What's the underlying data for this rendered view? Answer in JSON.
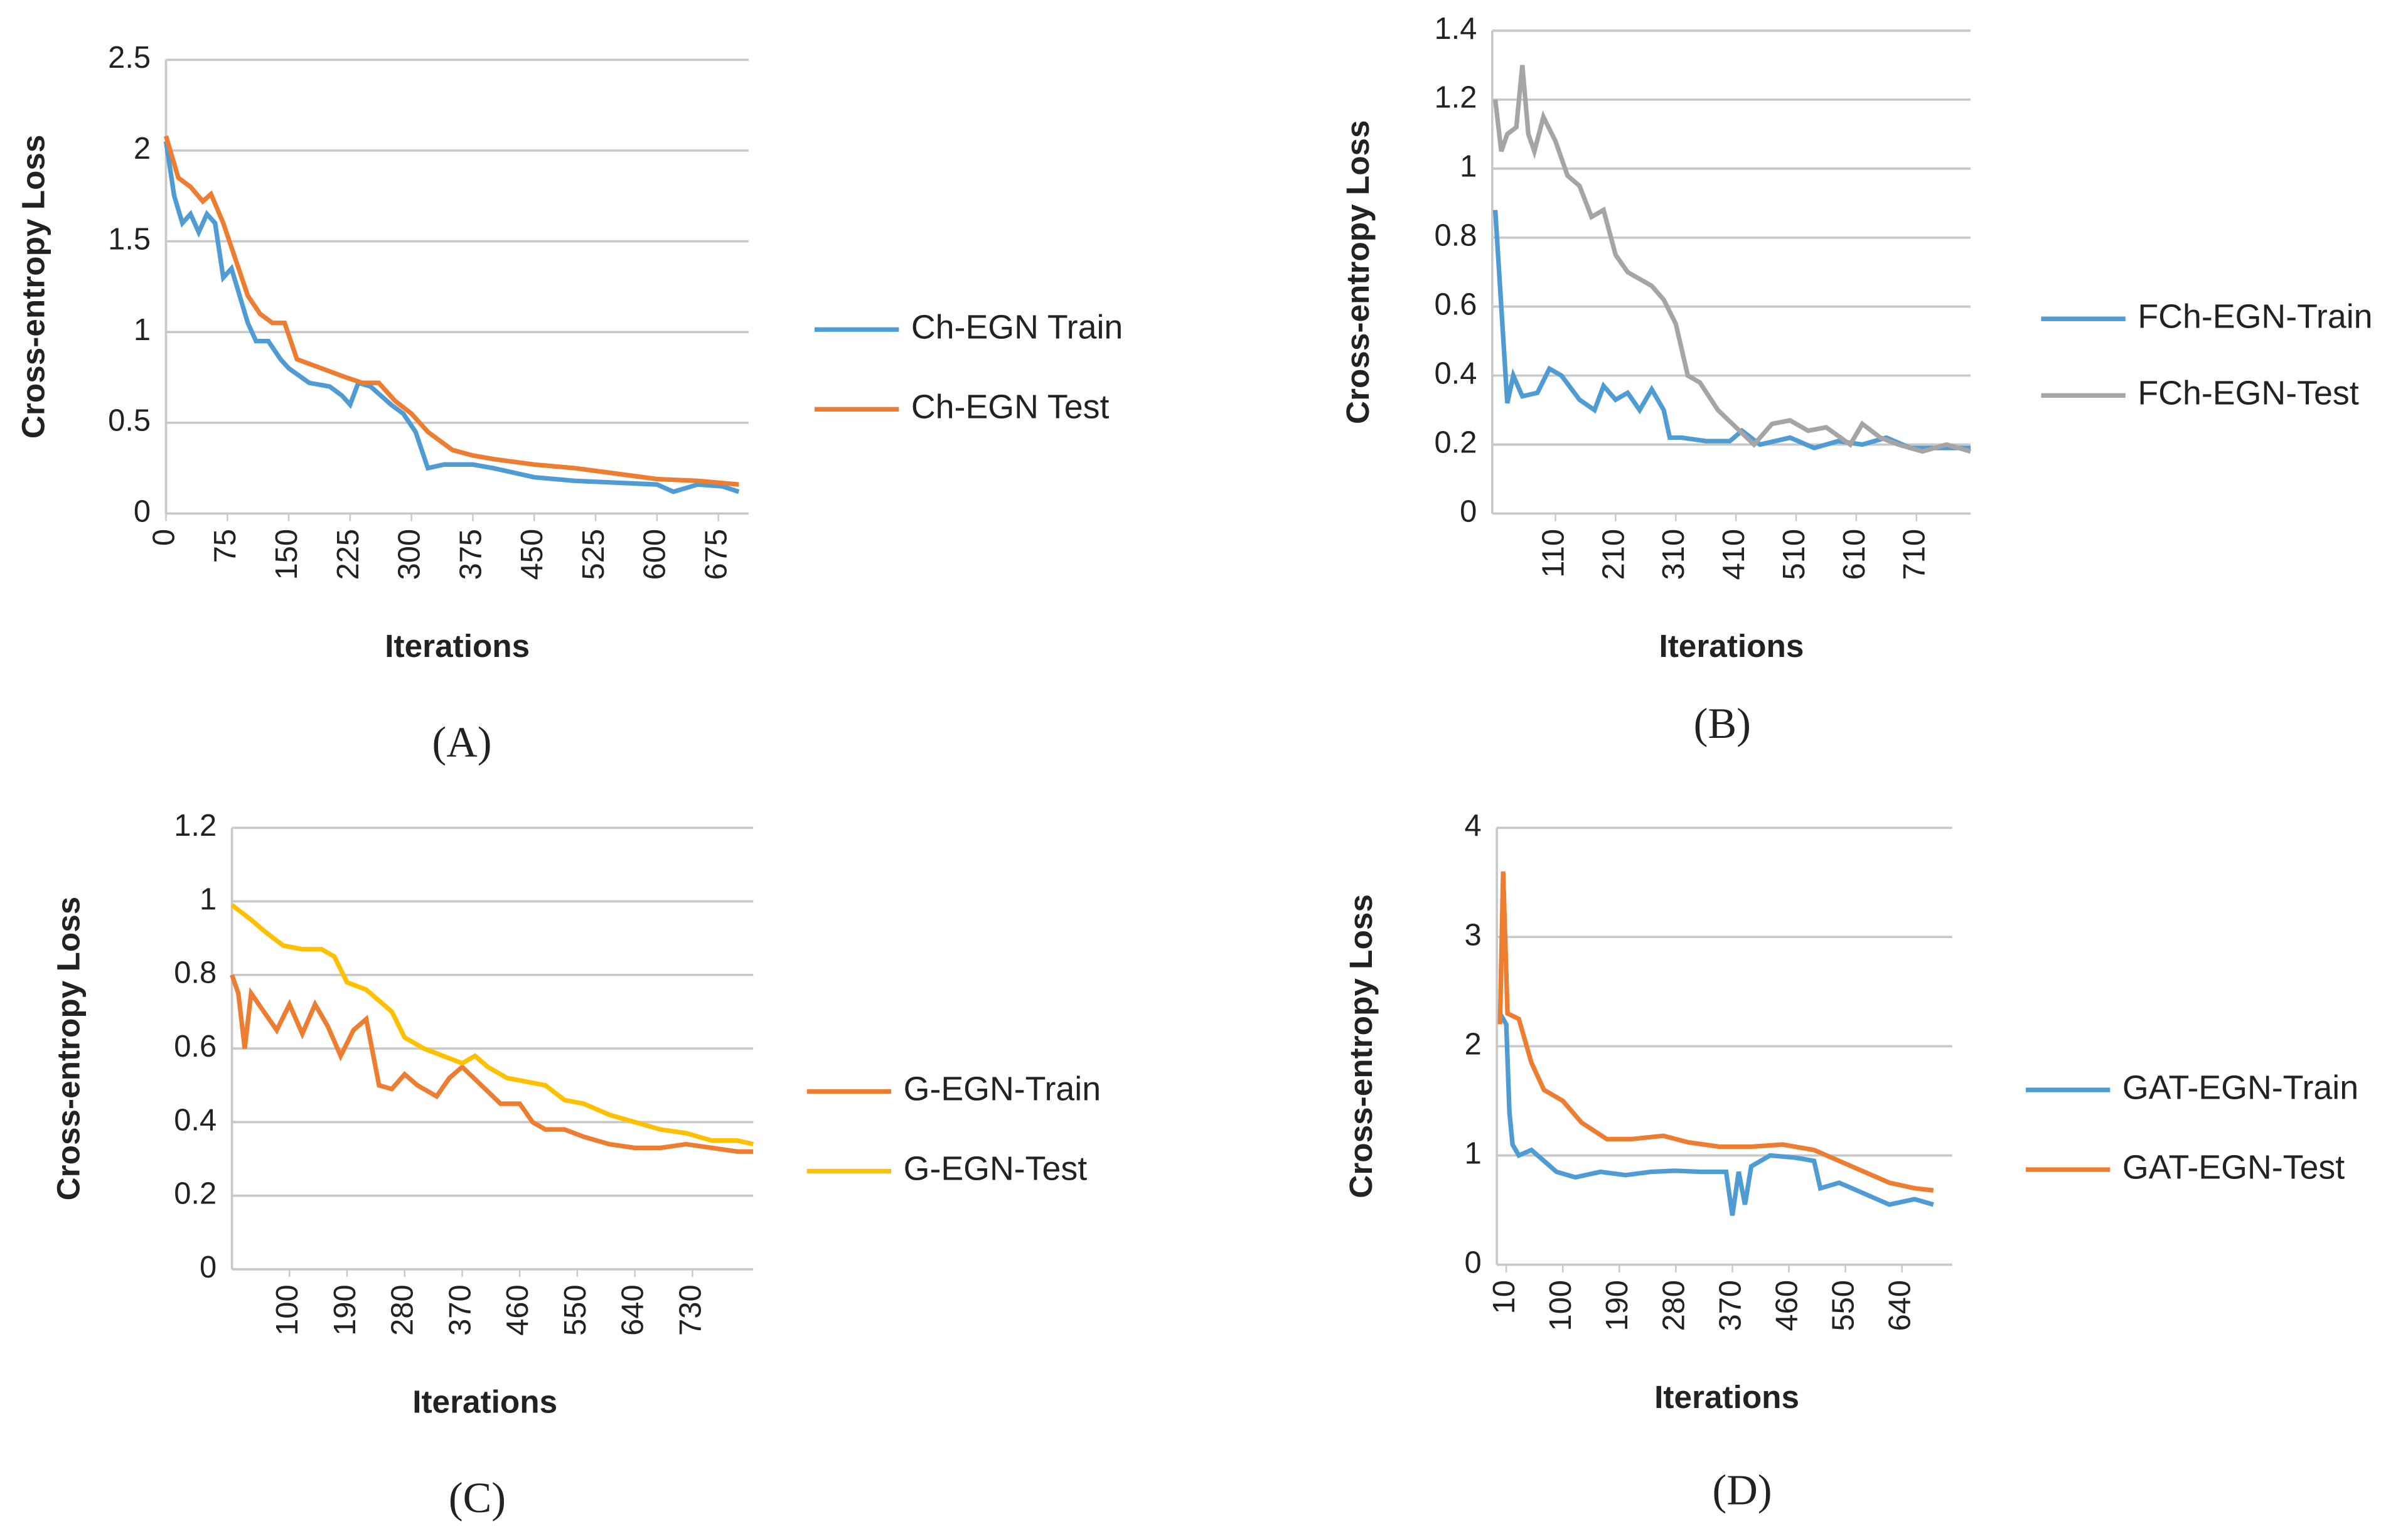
{
  "chart_data": [
    {
      "type": "line",
      "label": "(A)",
      "xlabel": "Iterations",
      "ylabel": "Cross-entropy Loss",
      "xlim": [
        0,
        712
      ],
      "ylim": [
        0,
        2.5
      ],
      "xticks": [
        0,
        75,
        150,
        225,
        300,
        375,
        450,
        525,
        600,
        675
      ],
      "yticks": [
        0,
        0.5,
        1,
        1.5,
        2,
        2.5
      ],
      "grid": true,
      "legend": "right",
      "series": [
        {
          "name": "Ch-EGN Train",
          "color": "#4f9bd3",
          "x": [
            0,
            10,
            20,
            30,
            40,
            50,
            60,
            70,
            80,
            90,
            100,
            110,
            125,
            140,
            150,
            175,
            200,
            215,
            225,
            235,
            250,
            275,
            290,
            305,
            320,
            340,
            375,
            400,
            450,
            500,
            550,
            600,
            620,
            650,
            680,
            700
          ],
          "values": [
            2.05,
            1.75,
            1.6,
            1.65,
            1.55,
            1.65,
            1.6,
            1.3,
            1.35,
            1.2,
            1.05,
            0.95,
            0.95,
            0.85,
            0.8,
            0.72,
            0.7,
            0.65,
            0.6,
            0.72,
            0.7,
            0.6,
            0.55,
            0.45,
            0.25,
            0.27,
            0.27,
            0.25,
            0.2,
            0.18,
            0.17,
            0.16,
            0.12,
            0.16,
            0.15,
            0.12
          ]
        },
        {
          "name": "Ch-EGN Test",
          "color": "#ed7d31",
          "x": [
            0,
            15,
            30,
            45,
            55,
            70,
            85,
            100,
            115,
            130,
            145,
            160,
            190,
            220,
            240,
            260,
            280,
            300,
            320,
            350,
            375,
            400,
            450,
            500,
            550,
            600,
            650,
            700
          ],
          "values": [
            2.08,
            1.85,
            1.8,
            1.72,
            1.76,
            1.6,
            1.4,
            1.2,
            1.1,
            1.05,
            1.05,
            0.85,
            0.8,
            0.75,
            0.72,
            0.72,
            0.62,
            0.55,
            0.45,
            0.35,
            0.32,
            0.3,
            0.27,
            0.25,
            0.22,
            0.19,
            0.18,
            0.16
          ]
        }
      ]
    },
    {
      "type": "line",
      "label": "(B)",
      "xlabel": "Iterations",
      "ylabel": "Cross-entropy Loss",
      "xlim": [
        5,
        800
      ],
      "ylim": [
        0,
        1.4
      ],
      "xticks": [
        110,
        210,
        310,
        410,
        510,
        610,
        710
      ],
      "yticks": [
        0,
        0.2,
        0.4,
        0.6,
        0.8,
        1,
        1.2,
        1.4
      ],
      "grid": true,
      "legend": "right",
      "series": [
        {
          "name": "FCh-EGN-Train",
          "color": "#4f9bd3",
          "x": [
            10,
            20,
            30,
            40,
            55,
            80,
            100,
            120,
            150,
            175,
            190,
            210,
            230,
            250,
            270,
            290,
            300,
            320,
            360,
            400,
            420,
            450,
            500,
            540,
            580,
            620,
            660,
            700,
            750,
            800
          ],
          "values": [
            0.88,
            0.6,
            0.32,
            0.4,
            0.34,
            0.35,
            0.42,
            0.4,
            0.33,
            0.3,
            0.37,
            0.33,
            0.35,
            0.3,
            0.36,
            0.3,
            0.22,
            0.22,
            0.21,
            0.21,
            0.24,
            0.2,
            0.22,
            0.19,
            0.21,
            0.2,
            0.22,
            0.19,
            0.19,
            0.19
          ]
        },
        {
          "name": "FCh-EGN-Test",
          "color": "#a5a5a5",
          "x": [
            10,
            20,
            30,
            45,
            55,
            65,
            75,
            90,
            110,
            130,
            150,
            170,
            190,
            210,
            230,
            250,
            270,
            290,
            310,
            330,
            350,
            380,
            410,
            440,
            470,
            500,
            530,
            560,
            600,
            620,
            650,
            680,
            720,
            760,
            800
          ],
          "values": [
            1.2,
            1.05,
            1.1,
            1.12,
            1.3,
            1.1,
            1.05,
            1.15,
            1.08,
            0.98,
            0.95,
            0.86,
            0.88,
            0.75,
            0.7,
            0.68,
            0.66,
            0.62,
            0.55,
            0.4,
            0.38,
            0.3,
            0.25,
            0.2,
            0.26,
            0.27,
            0.24,
            0.25,
            0.2,
            0.26,
            0.22,
            0.2,
            0.18,
            0.2,
            0.18
          ]
        }
      ]
    },
    {
      "type": "line",
      "label": "(C)",
      "xlabel": "Iterations",
      "ylabel": "Cross-entropy Loss",
      "xlim": [
        10,
        825
      ],
      "ylim": [
        0,
        1.2
      ],
      "xticks": [
        100,
        190,
        280,
        370,
        460,
        550,
        640,
        730
      ],
      "yticks": [
        0,
        0.2,
        0.4,
        0.6,
        0.8,
        1,
        1.2
      ],
      "grid": true,
      "legend": "right",
      "series": [
        {
          "name": "G-EGN-Train",
          "color": "#ed7d31",
          "x": [
            10,
            20,
            30,
            40,
            60,
            80,
            100,
            120,
            140,
            160,
            180,
            200,
            220,
            240,
            260,
            280,
            300,
            330,
            350,
            370,
            400,
            430,
            460,
            480,
            500,
            530,
            560,
            600,
            640,
            680,
            720,
            760,
            800,
            825
          ],
          "values": [
            0.8,
            0.75,
            0.6,
            0.75,
            0.7,
            0.65,
            0.72,
            0.64,
            0.72,
            0.66,
            0.58,
            0.65,
            0.68,
            0.5,
            0.49,
            0.53,
            0.5,
            0.47,
            0.52,
            0.55,
            0.5,
            0.45,
            0.45,
            0.4,
            0.38,
            0.38,
            0.36,
            0.34,
            0.33,
            0.33,
            0.34,
            0.33,
            0.32,
            0.32
          ]
        },
        {
          "name": "G-EGN-Test",
          "color": "#ffc000",
          "x": [
            10,
            40,
            60,
            90,
            120,
            150,
            170,
            190,
            220,
            260,
            280,
            310,
            340,
            370,
            390,
            410,
            440,
            470,
            500,
            530,
            560,
            600,
            640,
            680,
            720,
            760,
            800,
            825
          ],
          "values": [
            0.99,
            0.95,
            0.92,
            0.88,
            0.87,
            0.87,
            0.85,
            0.78,
            0.76,
            0.7,
            0.63,
            0.6,
            0.58,
            0.56,
            0.58,
            0.55,
            0.52,
            0.51,
            0.5,
            0.46,
            0.45,
            0.42,
            0.4,
            0.38,
            0.37,
            0.35,
            0.35,
            0.34
          ]
        }
      ]
    },
    {
      "type": "line",
      "label": "(D)",
      "xlabel": "Iterations",
      "ylabel": "Cross-entropy Loss",
      "xlim": [
        -5,
        720
      ],
      "ylim": [
        0,
        4
      ],
      "xticks": [
        10,
        100,
        190,
        280,
        370,
        460,
        550,
        640
      ],
      "yticks": [
        0,
        1,
        2,
        3,
        4
      ],
      "grid": true,
      "legend": "right",
      "series": [
        {
          "name": "GAT-EGN-Train",
          "color": "#4f9bd3",
          "x": [
            0,
            10,
            15,
            20,
            30,
            50,
            70,
            90,
            120,
            160,
            200,
            240,
            280,
            320,
            360,
            370,
            380,
            390,
            400,
            430,
            470,
            500,
            510,
            540,
            580,
            620,
            660,
            690
          ],
          "values": [
            2.3,
            2.2,
            1.4,
            1.1,
            1,
            1.05,
            0.95,
            0.85,
            0.8,
            0.85,
            0.82,
            0.85,
            0.86,
            0.85,
            0.85,
            0.45,
            0.85,
            0.55,
            0.9,
            1,
            0.98,
            0.95,
            0.7,
            0.75,
            0.65,
            0.55,
            0.6,
            0.55
          ]
        },
        {
          "name": "GAT-EGN-Test",
          "color": "#ed7d31",
          "x": [
            0,
            5,
            12,
            30,
            50,
            70,
            100,
            130,
            170,
            210,
            260,
            300,
            350,
            400,
            450,
            500,
            540,
            580,
            620,
            660,
            690
          ],
          "values": [
            2.2,
            3.6,
            2.3,
            2.25,
            1.85,
            1.6,
            1.5,
            1.3,
            1.15,
            1.15,
            1.18,
            1.12,
            1.08,
            1.08,
            1.1,
            1.05,
            0.95,
            0.85,
            0.75,
            0.7,
            0.68
          ]
        }
      ]
    }
  ]
}
